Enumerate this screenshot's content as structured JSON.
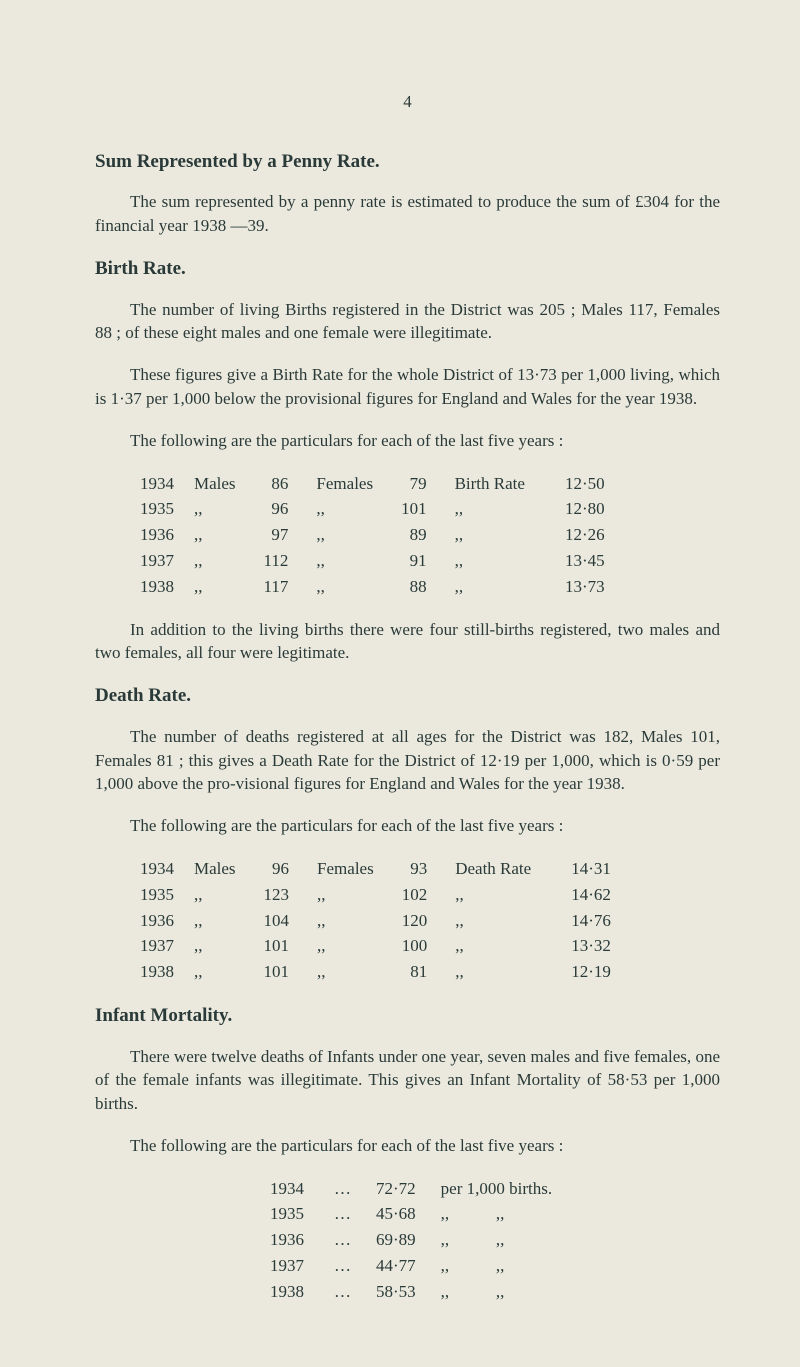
{
  "page_number": "4",
  "sections": {
    "sum": {
      "heading": "Sum Represented by a Penny Rate.",
      "para": "The sum represented by a penny rate is estimated to produce the sum of £304 for the financial year 1938 —39."
    },
    "birth": {
      "heading": "Birth Rate.",
      "para1": "The number of living Births registered in the District was 205 ; Males 117, Females 88 ; of these eight males and one female were illegitimate.",
      "para2": "These figures give a Birth Rate for the whole District of 13·73 per 1,000 living, which is 1·37 per 1,000 below the provisional figures for England and Wales for the year 1938.",
      "para3": "The following are the particulars for each of the last five years :",
      "rows": [
        {
          "year": "1934",
          "m_lbl": "Males",
          "m": "86",
          "f_lbl": "Females",
          "f": "79",
          "r_lbl": "Birth Rate",
          "r": "12·50"
        },
        {
          "year": "1935",
          "m_lbl": ",,",
          "m": "96",
          "f_lbl": ",,",
          "f": "101",
          "r_lbl": ",,",
          "r": "12·80"
        },
        {
          "year": "1936",
          "m_lbl": ",,",
          "m": "97",
          "f_lbl": ",,",
          "f": "89",
          "r_lbl": ",,",
          "r": "12·26"
        },
        {
          "year": "1937",
          "m_lbl": ",,",
          "m": "112",
          "f_lbl": ",,",
          "f": "91",
          "r_lbl": ",,",
          "r": "13·45"
        },
        {
          "year": "1938",
          "m_lbl": ",,",
          "m": "117",
          "f_lbl": ",,",
          "f": "88",
          "r_lbl": ",,",
          "r": "13·73"
        }
      ],
      "para4": "In addition to the living births there were four still-births registered, two males and two females, all four were legitimate."
    },
    "death": {
      "heading": "Death Rate.",
      "para1": "The number of deaths registered at all ages for the District was 182, Males 101, Females 81 ; this gives a Death Rate for the District of 12·19 per 1,000, which is 0·59 per 1,000 above the pro-visional figures for England and Wales for the year 1938.",
      "para2": "The following are the particulars for each of the last five years :",
      "rows": [
        {
          "year": "1934",
          "m_lbl": "Males",
          "m": "96",
          "f_lbl": "Females",
          "f": "93",
          "r_lbl": "Death Rate",
          "r": "14·31"
        },
        {
          "year": "1935",
          "m_lbl": ",,",
          "m": "123",
          "f_lbl": ",,",
          "f": "102",
          "r_lbl": ",,",
          "r": "14·62"
        },
        {
          "year": "1936",
          "m_lbl": ",,",
          "m": "104",
          "f_lbl": ",,",
          "f": "120",
          "r_lbl": ",,",
          "r": "14·76"
        },
        {
          "year": "1937",
          "m_lbl": ",,",
          "m": "101",
          "f_lbl": ",,",
          "f": "100",
          "r_lbl": ",,",
          "r": "13·32"
        },
        {
          "year": "1938",
          "m_lbl": ",,",
          "m": "101",
          "f_lbl": ",,",
          "f": "81",
          "r_lbl": ",,",
          "r": "12·19"
        }
      ]
    },
    "infant": {
      "heading": "Infant Mortality.",
      "para1": "There were twelve deaths of Infants under one year, seven males and five females, one of the female infants was illegitimate. This gives an Infant Mortality of 58·53 per 1,000 births.",
      "para2": "The following are the particulars for each of the last five years :",
      "rows": [
        {
          "year": "1934",
          "dots": "…",
          "val": "72·72",
          "suffix": "per 1,000 births."
        },
        {
          "year": "1935",
          "dots": "…",
          "val": "45·68",
          "suffix": ",,           ,,"
        },
        {
          "year": "1936",
          "dots": "…",
          "val": "69·89",
          "suffix": ",,           ,,"
        },
        {
          "year": "1937",
          "dots": "…",
          "val": "44·77",
          "suffix": ",,           ,,"
        },
        {
          "year": "1938",
          "dots": "…",
          "val": "58·53",
          "suffix": ",,           ,,"
        }
      ]
    }
  }
}
